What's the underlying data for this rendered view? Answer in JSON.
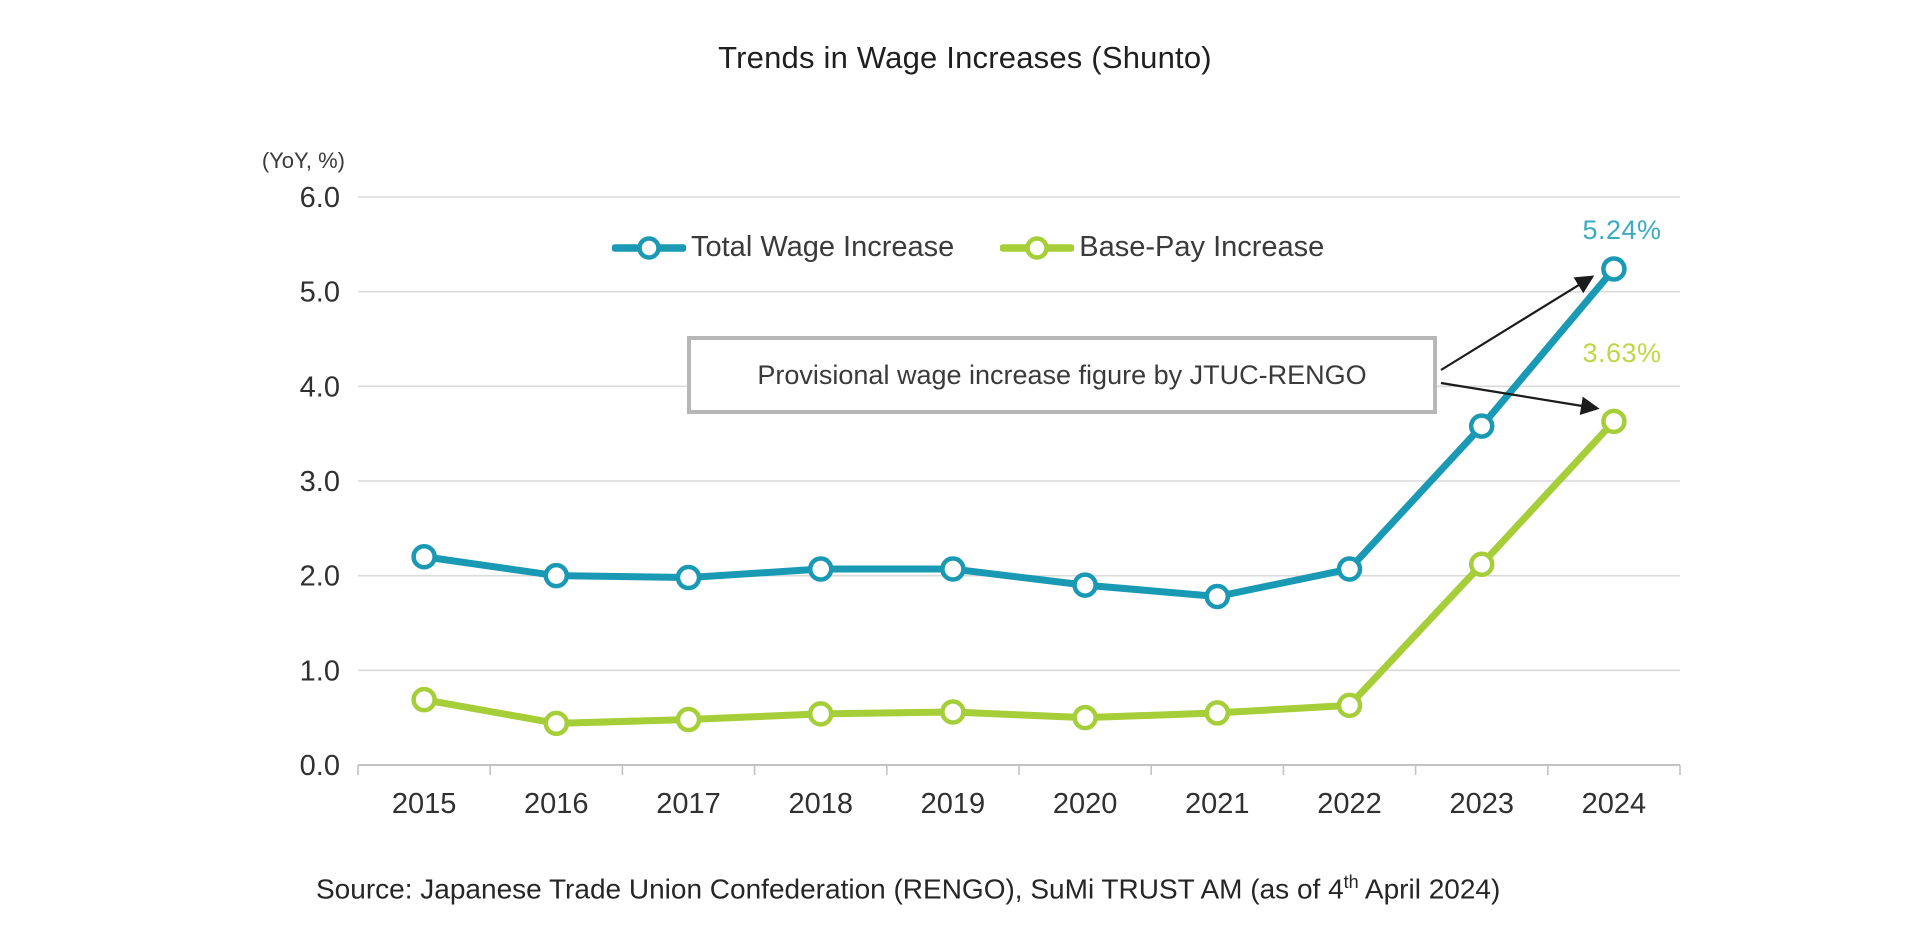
{
  "title": "Trends in Wage Increases (Shunto)",
  "source": {
    "prefix": "Source: Japanese Trade Union Confederation (RENGO), SuMi TRUST AM (as of 4",
    "superscript": "th",
    "suffix": " April 2024)"
  },
  "chart_data": {
    "type": "line",
    "title": "Trends in Wage Increases (Shunto)",
    "ylabel": "(YoY, %)",
    "xlabel": "",
    "categories": [
      "2015",
      "2016",
      "2017",
      "2018",
      "2019",
      "2020",
      "2021",
      "2022",
      "2023",
      "2024"
    ],
    "series": [
      {
        "name": "Total Wage Increase",
        "color": "#1999b3",
        "values": [
          2.2,
          2.0,
          1.98,
          2.07,
          2.07,
          1.9,
          1.78,
          2.07,
          3.58,
          5.24
        ],
        "end_label": "5.24%",
        "end_label_color": "#3caabf"
      },
      {
        "name": "Base-Pay Increase",
        "color": "#a5ce39",
        "values": [
          0.69,
          0.44,
          0.48,
          0.54,
          0.56,
          0.5,
          0.55,
          0.63,
          2.12,
          3.63
        ],
        "end_label": "3.63%",
        "end_label_color": "#bcd944"
      }
    ],
    "ylim": [
      0,
      6
    ],
    "y_ticks": [
      "0.0",
      "1.0",
      "2.0",
      "3.0",
      "4.0",
      "5.0",
      "6.0"
    ],
    "grid": "horizontal",
    "legend_position": "top-center-inside",
    "marker": "open-circle",
    "annotation": {
      "text": "Provisional wage increase figure by JTUC-RENGO",
      "points_to": [
        "Total Wage Increase 2024",
        "Base-Pay Increase 2024"
      ]
    }
  }
}
